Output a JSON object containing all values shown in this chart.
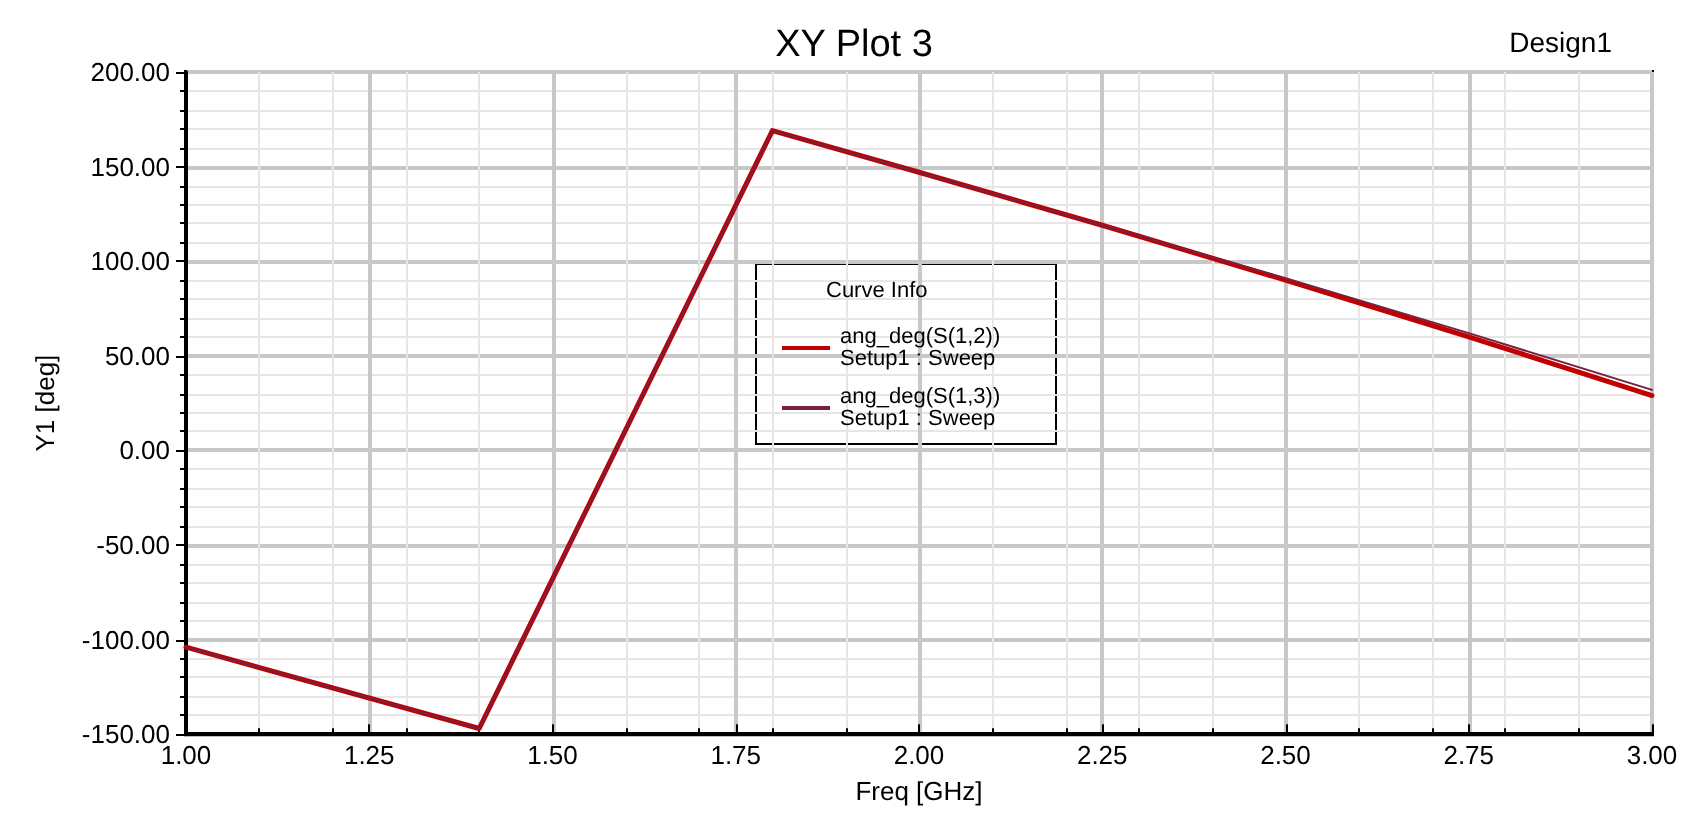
{
  "chart_data": {
    "type": "line",
    "title": "XY Plot 3",
    "xlabel": "Freq [GHz]",
    "ylabel": "Y1 [deg]",
    "legend_title": "Curve Info",
    "annotations": [
      "Design1"
    ],
    "series": [
      {
        "name": "ang_deg(S(1,2))\nSetup1 : Sweep",
        "color": "#c00000",
        "x": [
          1.0,
          1.4,
          1.8,
          2.0,
          2.25,
          2.5,
          2.75,
          3.0
        ],
        "values": [
          -104,
          -147,
          169,
          147,
          119,
          90,
          60,
          29
        ]
      },
      {
        "name": "ang_deg(S(1,3))\nSetup1 : Sweep",
        "color": "#7a1f3d",
        "x": [
          1.0,
          1.4,
          1.8,
          2.0,
          2.25,
          2.5,
          2.75,
          3.0
        ],
        "values": [
          -104,
          -147,
          169,
          147,
          119,
          91,
          62,
          32
        ]
      }
    ],
    "xlim": [
      1.0,
      3.0
    ],
    "xticks": [
      {
        "value": 1.0,
        "label": "1.00"
      },
      {
        "value": 1.25,
        "label": "1.25"
      },
      {
        "value": 1.5,
        "label": "1.50"
      },
      {
        "value": 1.75,
        "label": "1.75"
      },
      {
        "value": 2.0,
        "label": "2.00"
      },
      {
        "value": 2.25,
        "label": "2.25"
      },
      {
        "value": 2.5,
        "label": "2.50"
      },
      {
        "value": 2.75,
        "label": "2.75"
      },
      {
        "value": 3.0,
        "label": "3.00"
      }
    ],
    "ylim": [
      -150,
      200
    ],
    "yticks": [
      {
        "value": -150,
        "label": "-150.00"
      },
      {
        "value": -100,
        "label": "-100.00"
      },
      {
        "value": -50,
        "label": "-50.00"
      },
      {
        "value": 0,
        "label": "0.00"
      },
      {
        "value": 50,
        "label": "50.00"
      },
      {
        "value": 100,
        "label": "100.00"
      },
      {
        "value": 150,
        "label": "150.00"
      },
      {
        "value": 200,
        "label": "200.00"
      }
    ],
    "grid": true,
    "legend": "center",
    "marker": "none",
    "line_style": "solid"
  }
}
